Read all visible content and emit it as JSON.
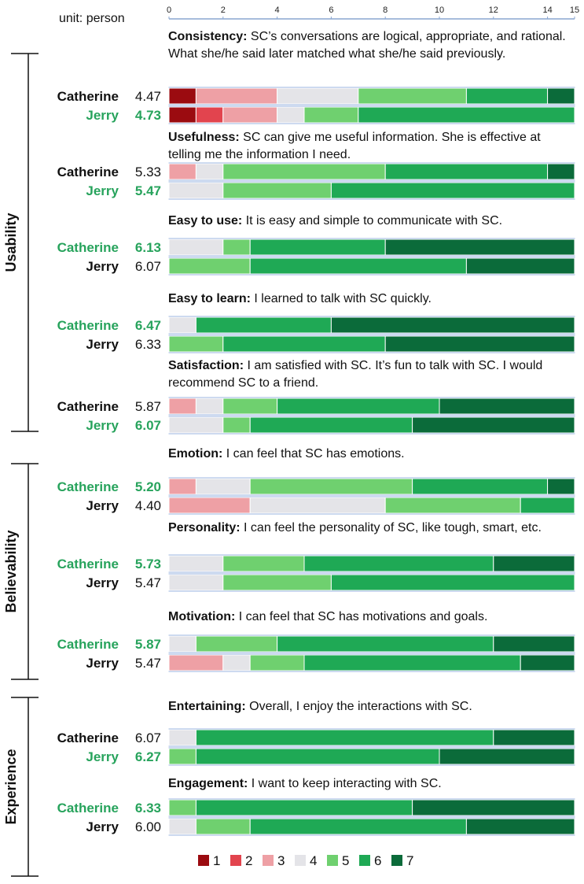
{
  "chart_data": {
    "type": "stacked-bar",
    "unit_label": "unit: person",
    "xlim": [
      0,
      15
    ],
    "ticks": [
      0,
      2,
      4,
      6,
      8,
      10,
      12,
      14,
      15
    ],
    "legend": {
      "labels": [
        "1",
        "2",
        "3",
        "4",
        "5",
        "6",
        "7"
      ],
      "colors": [
        "#9b0b10",
        "#e2444e",
        "#eea0a5",
        "#e4e4e8",
        "#6fd06f",
        "#1fa955",
        "#0b6b3a"
      ]
    },
    "groups": [
      {
        "name": "Usability",
        "start_q": 0,
        "end_q": 4
      },
      {
        "name": "Believability",
        "start_q": 5,
        "end_q": 7
      },
      {
        "name": "Experience",
        "start_q": 8,
        "end_q": 9
      }
    ],
    "questions": [
      {
        "title": "Consistency:",
        "text": " SC’s conversations are logical, appropriate, and rational. What she/he said later matched what she/he said previously.",
        "rows": [
          {
            "name": "Catherine",
            "score": "4.47",
            "highlight": false,
            "counts": [
              1,
              0,
              3,
              3,
              4,
              3,
              1
            ]
          },
          {
            "name": "Jerry",
            "score": "4.73",
            "highlight": true,
            "counts": [
              1,
              1,
              2,
              1,
              2,
              8,
              0
            ]
          }
        ]
      },
      {
        "title": "Usefulness:",
        "text": " SC can give me useful information. She is effective at telling me the information I need.",
        "rows": [
          {
            "name": "Catherine",
            "score": "5.33",
            "highlight": false,
            "counts": [
              0,
              0,
              1,
              1,
              6,
              6,
              1
            ]
          },
          {
            "name": "Jerry",
            "score": "5.47",
            "highlight": true,
            "counts": [
              0,
              0,
              0,
              2,
              4,
              9,
              0
            ]
          }
        ]
      },
      {
        "title": "Easy to use:",
        "text": " It is easy and simple to communicate with SC.",
        "rows": [
          {
            "name": "Catherine",
            "score": "6.13",
            "highlight": true,
            "counts": [
              0,
              0,
              0,
              2,
              1,
              5,
              7
            ]
          },
          {
            "name": "Jerry",
            "score": "6.07",
            "highlight": false,
            "counts": [
              0,
              0,
              0,
              0,
              3,
              8,
              4
            ]
          }
        ]
      },
      {
        "title": "Easy to learn:",
        "text": " I learned to talk with SC quickly.",
        "rows": [
          {
            "name": "Catherine",
            "score": "6.47",
            "highlight": true,
            "counts": [
              0,
              0,
              0,
              1,
              0,
              5,
              9
            ]
          },
          {
            "name": "Jerry",
            "score": "6.33",
            "highlight": false,
            "counts": [
              0,
              0,
              0,
              0,
              2,
              6,
              7
            ]
          }
        ]
      },
      {
        "title": "Satisfaction: ",
        "text": " I am satisfied with SC. It’s fun to talk with SC. I would recommend SC to a friend.",
        "rows": [
          {
            "name": "Catherine",
            "score": "5.87",
            "highlight": false,
            "counts": [
              0,
              0,
              1,
              1,
              2,
              6,
              5
            ]
          },
          {
            "name": "Jerry",
            "score": "6.07",
            "highlight": true,
            "counts": [
              0,
              0,
              0,
              2,
              1,
              6,
              6
            ]
          }
        ]
      },
      {
        "title": "Emotion:",
        "text": " I can feel that SC has emotions.",
        "rows": [
          {
            "name": "Catherine",
            "score": "5.20",
            "highlight": true,
            "counts": [
              0,
              0,
              1,
              2,
              6,
              5,
              1
            ]
          },
          {
            "name": "Jerry",
            "score": "4.40",
            "highlight": false,
            "counts": [
              0,
              0,
              3,
              5,
              5,
              2,
              0
            ]
          }
        ]
      },
      {
        "title": "Personality:",
        "text": " I can feel the personality of SC, like tough, smart, etc.",
        "rows": [
          {
            "name": "Catherine",
            "score": "5.73",
            "highlight": true,
            "counts": [
              0,
              0,
              0,
              2,
              3,
              7,
              3
            ]
          },
          {
            "name": "Jerry",
            "score": "5.47",
            "highlight": false,
            "counts": [
              0,
              0,
              0,
              2,
              4,
              9,
              0
            ]
          }
        ]
      },
      {
        "title": "Motivation:",
        "text": " I can feel that SC has motivations and goals.",
        "rows": [
          {
            "name": "Catherine",
            "score": "5.87",
            "highlight": true,
            "counts": [
              0,
              0,
              0,
              1,
              3,
              8,
              3
            ]
          },
          {
            "name": "Jerry",
            "score": "5.47",
            "highlight": false,
            "counts": [
              0,
              0,
              2,
              1,
              2,
              8,
              2
            ]
          }
        ]
      },
      {
        "title": "Entertaining:",
        "text": " Overall, I enjoy the interactions with SC.",
        "rows": [
          {
            "name": "Catherine",
            "score": "6.07",
            "highlight": false,
            "counts": [
              0,
              0,
              0,
              1,
              0,
              11,
              3
            ]
          },
          {
            "name": "Jerry",
            "score": "6.27",
            "highlight": true,
            "counts": [
              0,
              0,
              0,
              0,
              1,
              9,
              5
            ]
          }
        ]
      },
      {
        "title": "Engagement:",
        "text": " I want to keep interacting with SC.",
        "rows": [
          {
            "name": "Catherine",
            "score": "6.33",
            "highlight": true,
            "counts": [
              0,
              0,
              0,
              0,
              1,
              8,
              6
            ]
          },
          {
            "name": "Jerry",
            "score": "6.00",
            "highlight": false,
            "counts": [
              0,
              0,
              0,
              1,
              2,
              8,
              4
            ]
          }
        ]
      }
    ]
  }
}
